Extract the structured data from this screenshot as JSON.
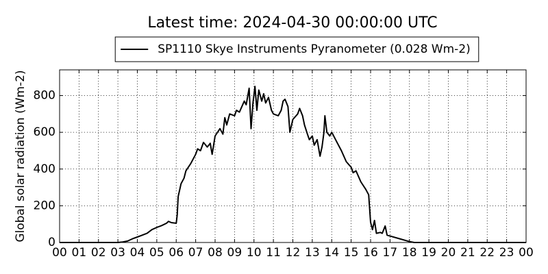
{
  "chart_data": {
    "type": "line",
    "title": "Latest time: 2024-04-30 00:00:00 UTC",
    "y_label": "Global solar radiation (Wm-2)",
    "legend": "upper center",
    "grid": true,
    "xlim": [
      0,
      24
    ],
    "ylim": [
      0,
      940
    ],
    "yticks": [
      0,
      200,
      400,
      600,
      800
    ],
    "xticks": [
      {
        "value": 0,
        "label": "00"
      },
      {
        "value": 1,
        "label": "01"
      },
      {
        "value": 2,
        "label": "02"
      },
      {
        "value": 3,
        "label": "03"
      },
      {
        "value": 4,
        "label": "04"
      },
      {
        "value": 5,
        "label": "05"
      },
      {
        "value": 6,
        "label": "06"
      },
      {
        "value": 7,
        "label": "07"
      },
      {
        "value": 8,
        "label": "08"
      },
      {
        "value": 9,
        "label": "09"
      },
      {
        "value": 10,
        "label": "10"
      },
      {
        "value": 11,
        "label": "11"
      },
      {
        "value": 12,
        "label": "12"
      },
      {
        "value": 13,
        "label": "13"
      },
      {
        "value": 14,
        "label": "14"
      },
      {
        "value": 15,
        "label": "15"
      },
      {
        "value": 16,
        "label": "16"
      },
      {
        "value": 17,
        "label": "17"
      },
      {
        "value": 18,
        "label": "18"
      },
      {
        "value": 19,
        "label": "19"
      },
      {
        "value": 20,
        "label": "20"
      },
      {
        "value": 21,
        "label": "21"
      },
      {
        "value": 22,
        "label": "22"
      },
      {
        "value": 23,
        "label": "23"
      },
      {
        "value": 24,
        "label": "00"
      }
    ],
    "x": [
      0,
      1,
      2,
      3,
      3.25,
      3.5,
      3.75,
      4,
      4.25,
      4.5,
      4.75,
      5,
      5.25,
      5.5,
      5.6,
      5.75,
      6,
      6.05,
      6.1,
      6.25,
      6.4,
      6.5,
      6.75,
      7,
      7.1,
      7.25,
      7.4,
      7.6,
      7.75,
      7.85,
      8,
      8.25,
      8.4,
      8.5,
      8.6,
      8.75,
      9,
      9.1,
      9.25,
      9.5,
      9.6,
      9.75,
      9.85,
      9.95,
      10.05,
      10.15,
      10.25,
      10.4,
      10.5,
      10.6,
      10.75,
      10.9,
      11,
      11.25,
      11.4,
      11.5,
      11.6,
      11.75,
      11.85,
      12,
      12.25,
      12.35,
      12.5,
      12.6,
      12.75,
      12.85,
      13,
      13.1,
      13.25,
      13.4,
      13.5,
      13.6,
      13.65,
      13.75,
      13.9,
      14,
      14.25,
      14.5,
      14.75,
      15,
      15.1,
      15.25,
      15.5,
      15.75,
      15.9,
      16,
      16.1,
      16.2,
      16.3,
      16.5,
      16.6,
      16.75,
      16.85,
      17,
      17.5,
      18,
      18.25,
      24
    ],
    "series": [
      {
        "name": "SP1110 Skye Instruments Pyranometer (0.028 Wm-2)",
        "color": "#000000",
        "values": [
          0,
          0,
          0,
          0,
          3,
          8,
          20,
          30,
          40,
          50,
          70,
          82,
          92,
          105,
          115,
          108,
          105,
          150,
          250,
          320,
          350,
          390,
          430,
          480,
          510,
          500,
          545,
          520,
          540,
          480,
          580,
          620,
          590,
          680,
          640,
          700,
          690,
          720,
          710,
          770,
          750,
          840,
          620,
          760,
          850,
          720,
          830,
          770,
          810,
          760,
          790,
          720,
          700,
          690,
          720,
          770,
          780,
          740,
          600,
          670,
          700,
          730,
          690,
          640,
          590,
          560,
          580,
          530,
          560,
          470,
          520,
          600,
          690,
          600,
          580,
          600,
          550,
          500,
          440,
          410,
          380,
          390,
          330,
          290,
          260,
          110,
          70,
          120,
          50,
          55,
          50,
          90,
          40,
          35,
          20,
          5,
          0,
          0
        ]
      }
    ]
  }
}
